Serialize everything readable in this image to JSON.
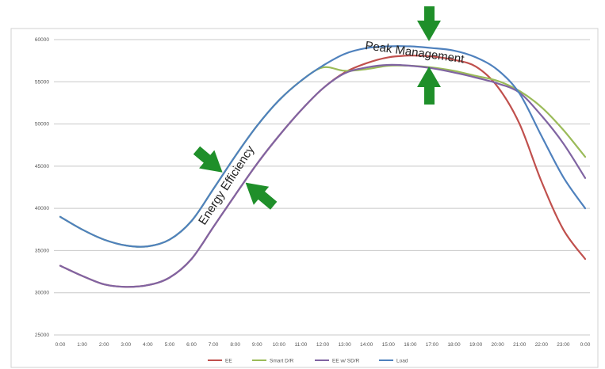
{
  "chart_data": {
    "type": "line",
    "title": "",
    "xlabel": "",
    "ylabel": "",
    "categories": [
      "0:00",
      "1:00",
      "2:00",
      "3:00",
      "4:00",
      "5:00",
      "6:00",
      "7:00",
      "8:00",
      "9:00",
      "10:00",
      "11:00",
      "12:00",
      "13:00",
      "14:00",
      "15:00",
      "16:00",
      "17:00",
      "18:00",
      "19:00",
      "20:00",
      "21:00",
      "22:00",
      "23:00",
      "0:00"
    ],
    "y_tick_labels": [
      "25000",
      "30000",
      "35000",
      "40000",
      "45000",
      "50000",
      "55000",
      "60000"
    ],
    "ylim": [
      25000,
      60000
    ],
    "grid": true,
    "legend_position": "bottom",
    "series": [
      {
        "name": "EE",
        "color": "#c0504d",
        "values": [
          33200,
          32000,
          31000,
          30700,
          30900,
          31800,
          34000,
          37800,
          41600,
          45300,
          48600,
          51600,
          54200,
          56100,
          57200,
          57900,
          58100,
          58000,
          57600,
          56800,
          54400,
          50000,
          43200,
          37500,
          34000
        ]
      },
      {
        "name": "Smart D/R",
        "color": "#9bbb59",
        "values": [
          39000,
          37500,
          36300,
          35600,
          35500,
          36300,
          38500,
          42300,
          46200,
          49800,
          52800,
          55100,
          56700,
          56300,
          56500,
          56900,
          56900,
          56700,
          56300,
          55700,
          55100,
          53900,
          52000,
          49300,
          46100
        ]
      },
      {
        "name": "EE w/ SD/R",
        "color": "#8064a2",
        "values": [
          33200,
          32000,
          31000,
          30700,
          30900,
          31800,
          34000,
          37800,
          41600,
          45300,
          48600,
          51600,
          54200,
          56000,
          56700,
          57000,
          56900,
          56600,
          56100,
          55500,
          54800,
          53700,
          51000,
          47700,
          43600
        ]
      },
      {
        "name": "Load",
        "color": "#4f81bd",
        "values": [
          39000,
          37500,
          36300,
          35600,
          35500,
          36300,
          38500,
          42300,
          46200,
          49800,
          52800,
          55100,
          56900,
          58300,
          59000,
          59200,
          59200,
          59000,
          58700,
          57900,
          56400,
          53600,
          48600,
          43700,
          40000
        ]
      }
    ],
    "annotations": [
      {
        "text": "Peak Management"
      },
      {
        "text": "Energy Efficiency"
      }
    ]
  }
}
